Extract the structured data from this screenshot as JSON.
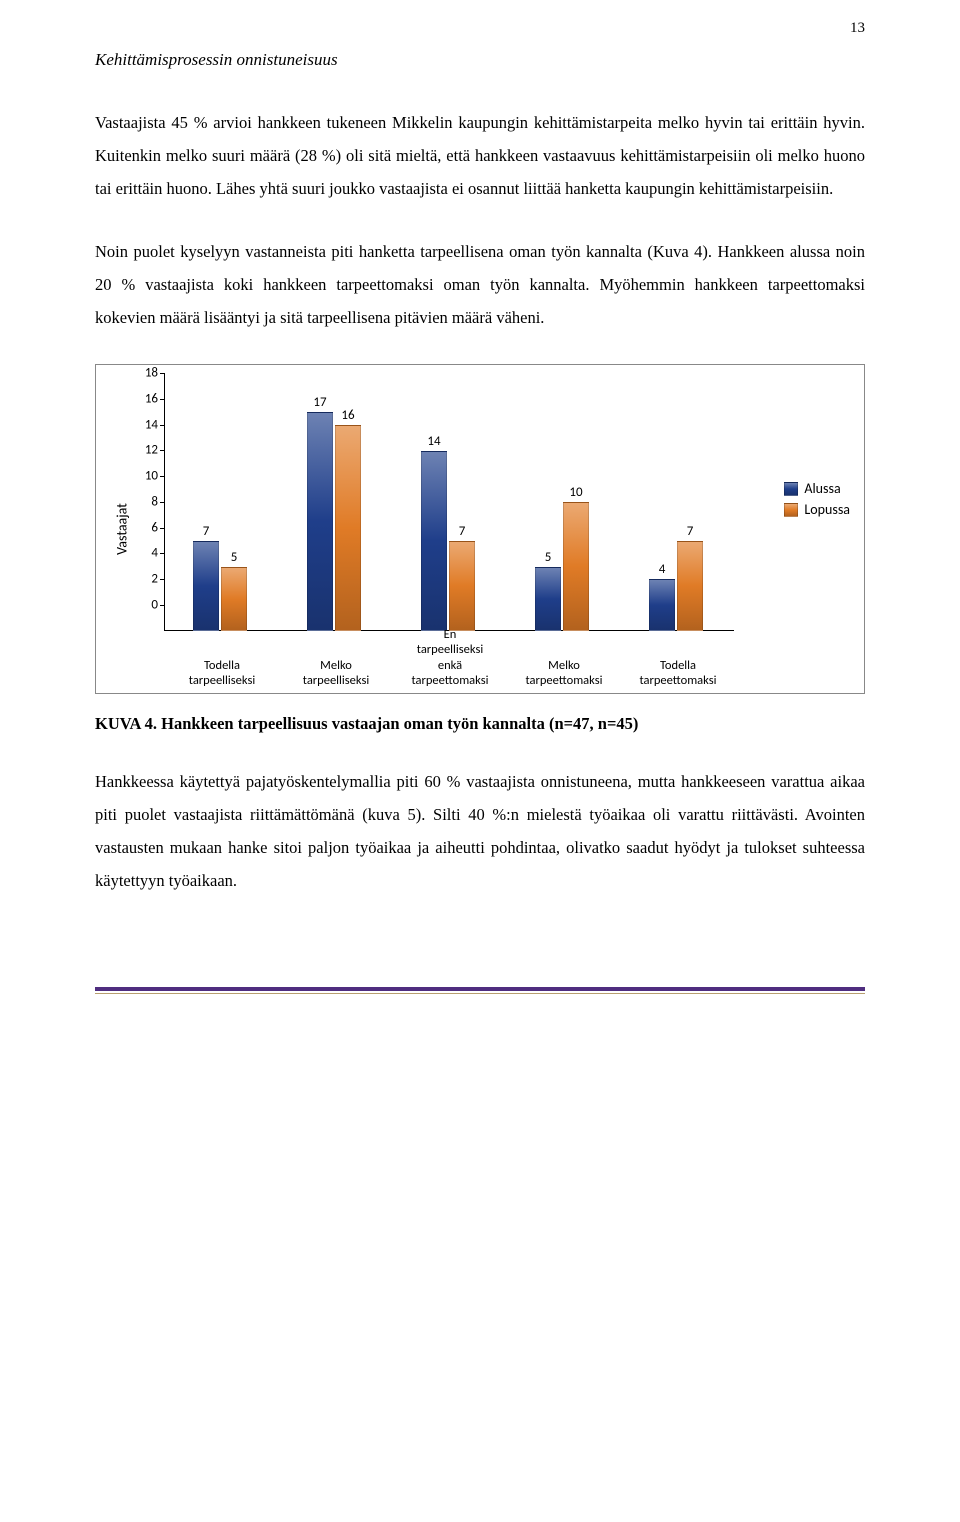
{
  "page_number": "13",
  "section_title": "Kehittämisprosessin onnistuneisuus",
  "paragraphs": {
    "p1": "Vastaajista 45 % arvioi hankkeen tukeneen Mikkelin kaupungin kehittämistarpeita melko hyvin tai erittäin hyvin. Kuitenkin melko suuri määrä (28 %) oli sitä mieltä, että hankkeen vastaavuus kehittämistarpeisiin oli melko huono tai erittäin huono. Lähes yhtä suuri joukko vastaajista ei osannut liittää hanketta kaupungin kehittämistarpeisiin.",
    "p2": "Noin puolet kyselyyn vastanneista piti hanketta tarpeellisena oman työn kannalta (Kuva 4). Hankkeen alussa noin 20 % vastaajista koki hankkeen tarpeettomaksi oman työn kannalta. Myöhemmin hankkeen tarpeettomaksi kokevien määrä lisääntyi ja sitä tarpeellisena pitävien määrä väheni.",
    "p3": "Hankkeessa käytettyä pajatyöskentelymallia piti 60 % vastaajista onnistuneena, mutta hankkeeseen varattua aikaa piti puolet vastaajista riittämättömänä (kuva 5). Silti 40 %:n mielestä työaikaa oli varattu riittävästi. Avointen vastausten mukaan hanke sitoi paljon työaikaa ja aiheutti pohdintaa, olivatko saadut hyödyt ja tulokset suhteessa käytettyyn työaikaan."
  },
  "caption": "KUVA 4. Hankkeen tarpeellisuus vastaajan oman työn kannalta (n=47, n=45)",
  "chart": {
    "type": "bar",
    "y_axis_label": "Vastaajat",
    "y_ticks": [
      0,
      2,
      4,
      6,
      8,
      10,
      12,
      14,
      16,
      18
    ],
    "ylim": [
      0,
      18
    ],
    "categories": [
      "Todella tarpeelliseksi",
      "Melko tarpeelliseksi",
      "En tarpeelliseksi enkä tarpeettomaksi",
      "Melko tarpeettomaksi",
      "Todella tarpeettomaksi"
    ],
    "series": [
      {
        "name": "Alussa",
        "color": "#1f3e8a",
        "values": [
          7,
          17,
          14,
          5,
          4
        ]
      },
      {
        "name": "Lopussa",
        "color": "#e07b26",
        "values": [
          5,
          16,
          7,
          10,
          7
        ]
      }
    ],
    "label_font": "Calibri",
    "bg": "#ffffff"
  }
}
